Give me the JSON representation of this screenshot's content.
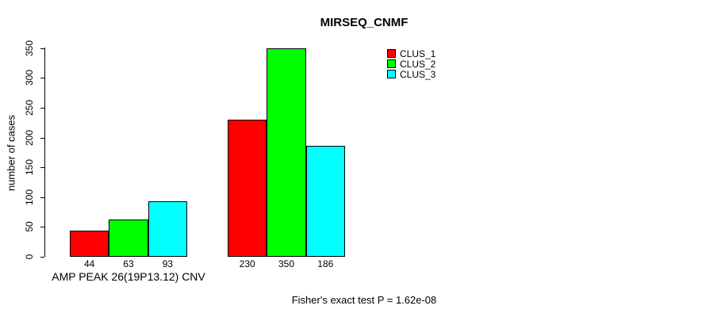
{
  "chart_data": {
    "type": "bar",
    "title": "MIRSEQ_CNMF",
    "ylabel": "number of cases",
    "xlabel": "",
    "group_label": "AMP PEAK 26(19P13.12) CNV",
    "categories": [
      "AMP PEAK 26(19P13.12) CNV",
      ""
    ],
    "series": [
      {
        "name": "CLUS_1",
        "color": "#FF0000",
        "values": [
          44,
          230
        ]
      },
      {
        "name": "CLUS_2",
        "color": "#00FF00",
        "values": [
          63,
          350
        ]
      },
      {
        "name": "CLUS_3",
        "color": "#00FFFF",
        "values": [
          93,
          186
        ]
      }
    ],
    "bar_value_labels": [
      [
        44,
        63,
        93
      ],
      [
        230,
        350,
        186
      ]
    ],
    "yticks": [
      0,
      50,
      100,
      150,
      200,
      250,
      300,
      350
    ],
    "ylim": [
      0,
      350
    ],
    "grid": false,
    "legend_position": "top-right",
    "annotation": "Fisher's exact test P = 1.62e-08"
  }
}
